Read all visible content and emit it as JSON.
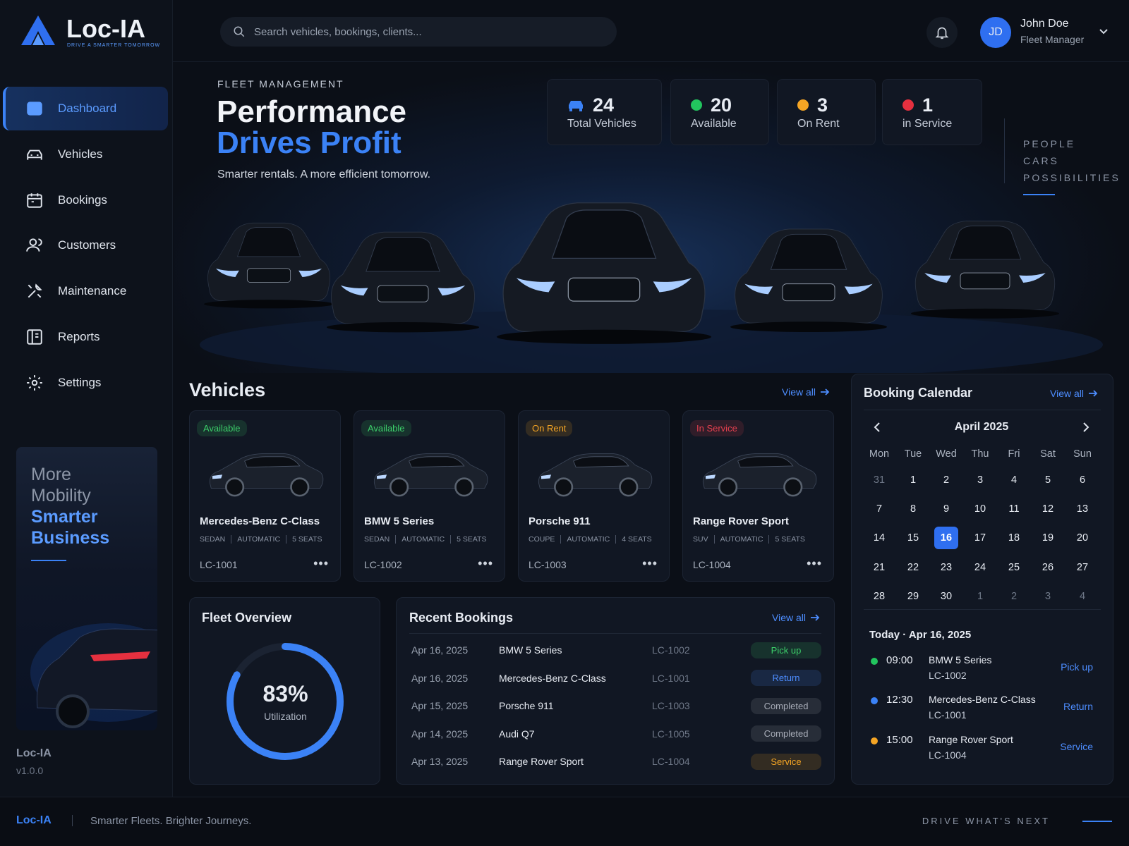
{
  "header": {
    "logo": "Loc-IA",
    "logo_tagline": "DRIVE A SMARTER TOMORROW",
    "search_placeholder": "Search vehicles, bookings, clients...",
    "user": {
      "initials": "JD",
      "name": "John Doe",
      "role": "Fleet Manager"
    }
  },
  "sidebar": {
    "nav": [
      {
        "label": "Dashboard",
        "active": true
      },
      {
        "label": "Vehicles"
      },
      {
        "label": "Bookings"
      },
      {
        "label": "Customers"
      },
      {
        "label": "Maintenance"
      },
      {
        "label": "Reports"
      },
      {
        "label": "Settings"
      }
    ],
    "promo": {
      "lines": [
        "More",
        "Mobility"
      ],
      "highlight": [
        "Smarter",
        "Business"
      ]
    },
    "app_name": "Loc-IA",
    "version": "v1.0.0"
  },
  "hero": {
    "eyebrow": "FLEET MANAGEMENT",
    "title_line1": "Performance",
    "title_line2": "Drives Profit",
    "subtitle": "Smarter rentals. A more efficient tomorrow.",
    "stats": [
      {
        "value": 24,
        "label": "Total Vehicles",
        "color": "#3b82f6"
      },
      {
        "value": 20,
        "label": "Available",
        "color": "#22c55e"
      },
      {
        "value": 3,
        "label": "On Rent",
        "color": "#f5a524"
      },
      {
        "value": 1,
        "label": "in Service",
        "color": "#e5303f"
      }
    ],
    "tagline": [
      "PEOPLE",
      "CARS",
      "POSSIBILITIES"
    ]
  },
  "vehicles": {
    "title": "Vehicles",
    "view_all": "View all",
    "items": [
      {
        "status": "Available",
        "status_color": "#3ccf6a",
        "name": "Mercedes-Benz C-Class",
        "specs": [
          "SEDAN",
          "AUTOMATIC",
          "5 SEATS"
        ],
        "id": "LC-1001"
      },
      {
        "status": "Available",
        "status_color": "#3ccf6a",
        "name": "BMW 5 Series",
        "specs": [
          "SEDAN",
          "AUTOMATIC",
          "5 SEATS"
        ],
        "id": "LC-1002"
      },
      {
        "status": "On Rent",
        "status_color": "#f5a524",
        "name": "Porsche 911",
        "specs": [
          "COUPE",
          "AUTOMATIC",
          "4 SEATS"
        ],
        "id": "LC-1003"
      },
      {
        "status": "In Service",
        "status_color": "#e5404f",
        "name": "Range Rover Sport",
        "specs": [
          "SUV",
          "AUTOMATIC",
          "5 SEATS"
        ],
        "id": "LC-1004"
      }
    ]
  },
  "fleet_overview": {
    "title": "Fleet Overview",
    "utilization": {
      "value": 83,
      "label": "83%"
    },
    "caption": "Utilization"
  },
  "recent_bookings": {
    "title": "Recent Bookings",
    "view_all": "View all",
    "rows": [
      {
        "date": "Apr 16, 2025",
        "vehicle": "BMW 5 Series",
        "id": "LC-1002",
        "status": "Pick up",
        "status_color": "#3ccf6a"
      },
      {
        "date": "Apr 16, 2025",
        "vehicle": "Mercedes-Benz C-Class",
        "id": "LC-1001",
        "status": "Return",
        "status_color": "#4d8dff"
      },
      {
        "date": "Apr 15, 2025",
        "vehicle": "Porsche 911",
        "id": "LC-1003",
        "status": "Completed",
        "status_color": "#a8adb8"
      },
      {
        "date": "Apr 14, 2025",
        "vehicle": "Audi Q7",
        "id": "LC-1005",
        "status": "Completed",
        "status_color": "#a8adb8"
      },
      {
        "date": "Apr 13, 2025",
        "vehicle": "Range Rover Sport",
        "id": "LC-1004",
        "status": "Service",
        "status_color": "#f5a524"
      }
    ]
  },
  "calendar": {
    "title": "Booking Calendar",
    "view_all": "View all",
    "month": "April 2025",
    "weekdays": [
      "Mon",
      "Tue",
      "Wed",
      "Thu",
      "Fri",
      "Sat",
      "Sun"
    ],
    "days": [
      31,
      1,
      2,
      3,
      4,
      5,
      6,
      7,
      8,
      9,
      10,
      11,
      12,
      13,
      14,
      15,
      16,
      17,
      18,
      19,
      20,
      21,
      22,
      23,
      24,
      25,
      26,
      27,
      28,
      29,
      30,
      1,
      2,
      3,
      4
    ],
    "selected_day": 16,
    "today_label": "Today · Apr 16, 2025",
    "events": [
      {
        "time": "09:00",
        "vehicle": "BMW 5 Series",
        "id": "LC-1002",
        "action": "Pick up",
        "color": "#22c55e"
      },
      {
        "time": "12:30",
        "vehicle": "Mercedes-Benz C-Class",
        "id": "LC-1001",
        "action": "Return",
        "color": "#3b82f6"
      },
      {
        "time": "15:00",
        "vehicle": "Range Rover Sport",
        "id": "LC-1004",
        "action": "Service",
        "color": "#f5a524"
      }
    ]
  },
  "footer": {
    "brand": "Loc-IA",
    "slogan": "Smarter Fleets. Brighter Journeys.",
    "tagline": "DRIVE WHAT'S NEXT"
  }
}
